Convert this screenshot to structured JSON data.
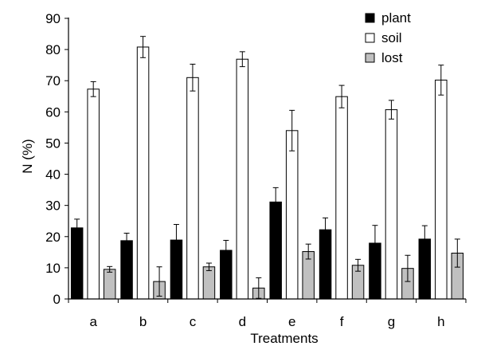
{
  "chart_data": {
    "type": "bar",
    "xlabel": "Treatments",
    "ylabel": "N (%)",
    "ylim": [
      0,
      90
    ],
    "yticks": [
      0,
      10,
      20,
      30,
      40,
      50,
      60,
      70,
      80,
      90
    ],
    "categories": [
      "a",
      "b",
      "c",
      "d",
      "e",
      "f",
      "g",
      "h"
    ],
    "legend_position": "top-right",
    "grid": false,
    "series": [
      {
        "name": "plant",
        "color": "#000000",
        "values": [
          22.8,
          18.7,
          18.9,
          15.6,
          31.1,
          22.2,
          17.9,
          19.2
        ],
        "errors": [
          2.8,
          2.4,
          5.0,
          3.2,
          4.6,
          3.8,
          5.7,
          4.3
        ]
      },
      {
        "name": "soil",
        "color": "#ffffff",
        "values": [
          67.3,
          80.8,
          71.0,
          76.9,
          54.0,
          64.9,
          60.7,
          70.2
        ],
        "errors": [
          2.4,
          3.4,
          4.3,
          2.4,
          6.5,
          3.6,
          3.0,
          4.8
        ]
      },
      {
        "name": "lost",
        "color": "#c0c0c0",
        "values": [
          9.5,
          5.6,
          10.3,
          3.5,
          15.2,
          10.8,
          9.8,
          14.7
        ],
        "errors": [
          0.9,
          4.7,
          1.2,
          3.3,
          2.4,
          1.9,
          4.2,
          4.5
        ]
      }
    ]
  }
}
